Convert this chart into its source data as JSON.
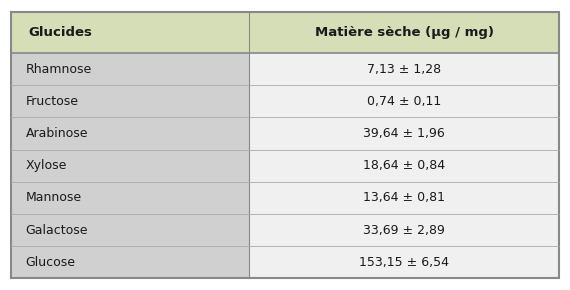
{
  "header": [
    "Glucides",
    "Matière sèche (µg / mg)"
  ],
  "rows": [
    [
      "Rhamnose",
      "7,13 ± 1,28"
    ],
    [
      "Fructose",
      "0,74 ± 0,11"
    ],
    [
      "Arabinose",
      "39,64 ± 1,96"
    ],
    [
      "Xylose",
      "18,64 ± 0,84"
    ],
    [
      "Mannose",
      "13,64 ± 0,81"
    ],
    [
      "Galactose",
      "33,69 ± 2,89"
    ],
    [
      "Glucose",
      "153,15 ± 6,54"
    ]
  ],
  "header_bg": "#d6deb8",
  "col1_bg": "#d0d0d0",
  "col2_bg": "#f0f0f0",
  "border_color": "#888888",
  "row_line_color": "#aaaaaa",
  "header_text_color": "#1a1a1a",
  "body_text_color": "#1a1a1a",
  "font_size_header": 9.5,
  "font_size_body": 9.0,
  "col_split": 0.435,
  "fig_width": 5.7,
  "fig_height": 2.9,
  "dpi": 100
}
